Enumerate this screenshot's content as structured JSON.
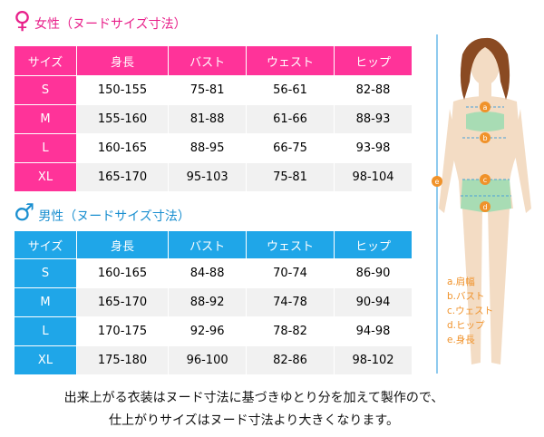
{
  "colors": {
    "female": "#ff3399",
    "male": "#1fa6e8",
    "legend": "#f0922a"
  },
  "female": {
    "symbol": "♀",
    "title": "女性（ヌードサイズ寸法）",
    "headers": [
      "サイズ",
      "身長",
      "バスト",
      "ウェスト",
      "ヒップ"
    ],
    "rows": [
      [
        "S",
        "150-155",
        "75-81",
        "56-61",
        "82-88"
      ],
      [
        "M",
        "155-160",
        "81-88",
        "61-66",
        "88-93"
      ],
      [
        "L",
        "160-165",
        "88-95",
        "66-75",
        "93-98"
      ],
      [
        "XL",
        "165-170",
        "95-103",
        "75-81",
        "98-104"
      ]
    ]
  },
  "male": {
    "symbol": "♂",
    "title": "男性（ヌードサイズ寸法）",
    "headers": [
      "サイズ",
      "身長",
      "バスト",
      "ウェスト",
      "ヒップ"
    ],
    "rows": [
      [
        "S",
        "160-165",
        "84-88",
        "70-74",
        "86-90"
      ],
      [
        "M",
        "165-170",
        "88-92",
        "74-78",
        "90-94"
      ],
      [
        "L",
        "170-175",
        "92-96",
        "78-82",
        "94-98"
      ],
      [
        "XL",
        "175-180",
        "96-100",
        "82-86",
        "98-102"
      ]
    ]
  },
  "figure": {
    "markers": [
      "a",
      "b",
      "c",
      "d",
      "e"
    ],
    "legend": [
      "a.肩幅",
      "b.バスト",
      "c.ウェスト",
      "d.ヒップ",
      "e.身長"
    ]
  },
  "caption": [
    "出来上がる衣装はヌード寸法に基づきゆとり分を加えて製作ので、",
    "仕上がりサイズはヌード寸法より大きくなります。"
  ]
}
